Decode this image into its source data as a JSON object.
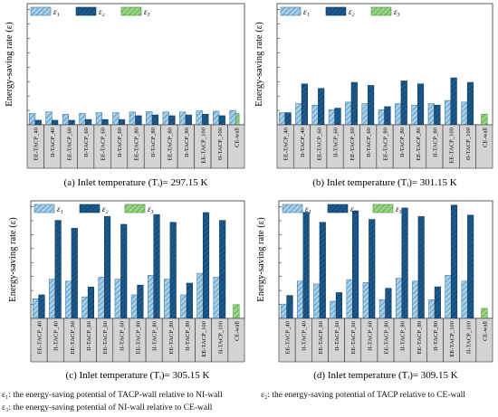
{
  "panel_labels": [
    "(a) Inlet temperature (Tᵢ)= 297.15 K",
    "(b) Inlet temperature (Tᵢ)= 301.15 K",
    "(c) Inlet temperature (Tᵢ)= 305.15 K",
    "(d) Inlet temperature (Tᵢ)= 309.15 K"
  ],
  "footnotes": {
    "e1": "ε₁: the energy-saving potential of TACP-wall relative to NI-wall",
    "e2": "ε₂: the energy-saving potential of TACP relative to CE-wall",
    "e3": "ε₃: the energy-saving potential of NI-wall relative to CE-wall"
  },
  "colors": {
    "e1_fill": "#a9cfe6",
    "e1_hatch": "#3b7fb3",
    "e2_fill": "#1d5a8c",
    "e2_hatch": "#0d3a62",
    "e3_fill": "#9ed48a",
    "e3_hatch": "#3d9a2f",
    "label_box": "#d4d4d4"
  },
  "chart_data": [
    {
      "type": "bar",
      "title": "(a) Inlet temperature (Tᵢ)= 297.15 K",
      "ylabel": "Energy-saving rate (ε)",
      "ylim": [
        0,
        8
      ],
      "legend": [
        "ε₁",
        "ε₂",
        "ε₃"
      ],
      "legend_placement": "top-left",
      "categories": [
        "EE-TACP_40",
        "II-TACP_40",
        "EE-TACP_60",
        "II-TACP_60",
        "EE-TACP_60",
        "II-TACP_60",
        "EE-TACP_80",
        "II-TACP_80",
        "EE-TACP_80",
        "II-TACP_80",
        "EE-TACP_100",
        "II-TACP_100",
        "CE-wall"
      ],
      "e1": [
        0.75,
        0.85,
        0.7,
        0.75,
        0.8,
        0.8,
        0.85,
        0.88,
        0.85,
        0.85,
        0.92,
        0.9,
        0.95
      ],
      "e2": [
        0.3,
        0.3,
        0.3,
        0.35,
        0.35,
        0.35,
        0.6,
        0.65,
        0.6,
        0.65,
        0.7,
        0.6,
        null
      ],
      "e3": [
        null,
        null,
        null,
        null,
        null,
        null,
        null,
        null,
        null,
        null,
        null,
        null,
        0.75
      ]
    },
    {
      "type": "bar",
      "title": "(b) Inlet temperature (Tᵢ)= 301.15 K",
      "ylabel": "Energy-saving rate (ε)",
      "ylim": [
        0,
        8
      ],
      "legend": [
        "ε₁",
        "ε₂",
        "ε₃"
      ],
      "legend_placement": "top-left",
      "categories": [
        "EE-TACP_40",
        "II-TACP_40",
        "EE-TACP_60",
        "II-TACP_60",
        "EE-TACP_60",
        "II-TACP_60",
        "EE-TACP_80",
        "II-TACP_80",
        "EE-TACP_80",
        "II-TACP_80",
        "EE-TACP_100",
        "II-TACP_100",
        "CE-wall"
      ],
      "e1": [
        0.8,
        1.4,
        1.3,
        1.0,
        1.5,
        1.4,
        1.0,
        1.4,
        1.3,
        1.4,
        1.6,
        1.5,
        null
      ],
      "e2": [
        0.8,
        2.7,
        2.4,
        1.1,
        2.8,
        2.6,
        1.2,
        2.9,
        2.7,
        1.3,
        3.1,
        2.8,
        null
      ],
      "e3": [
        null,
        null,
        null,
        null,
        null,
        null,
        null,
        null,
        null,
        null,
        null,
        null,
        0.7
      ]
    },
    {
      "type": "bar",
      "title": "(c) Inlet temperature (Tᵢ)= 305.15 K",
      "ylabel": "Energy-saving rate (ε)",
      "ylim": [
        0,
        6
      ],
      "legend": [
        "ε₁",
        "ε₂",
        "ε₃"
      ],
      "legend_placement": "top-left",
      "categories": [
        "EE-TACP_40",
        "II-TACP_40",
        "EE-TACP_60",
        "II-TACP_60",
        "EE-TACP_60",
        "II-TACP_60",
        "EE-TACP_80",
        "II-TACP_80",
        "EE-TACP_80",
        "II-TACP_80",
        "EE-TACP_100",
        "II-TACP_100",
        "CE-wall"
      ],
      "e1": [
        1.0,
        2.0,
        1.9,
        1.1,
        2.1,
        2.0,
        1.2,
        2.2,
        2.0,
        1.2,
        2.3,
        2.1,
        null
      ],
      "e2": [
        1.2,
        5.0,
        4.6,
        1.6,
        5.2,
        4.8,
        1.7,
        5.3,
        4.9,
        1.8,
        5.4,
        5.0,
        null
      ],
      "e3": [
        null,
        null,
        null,
        null,
        null,
        null,
        null,
        null,
        null,
        null,
        null,
        null,
        0.7
      ]
    },
    {
      "type": "bar",
      "title": "(d) Inlet temperature (Tᵢ)= 309.15 K",
      "ylabel": "Energy-saving rate (ε)",
      "ylim": [
        0,
        8.2
      ],
      "legend": [
        "ε₁",
        "ε₂",
        "ε₃"
      ],
      "legend_placement": "top-left",
      "categories": [
        "EE-TACP_40",
        "II-TACP_40",
        "EE-TACP_60",
        "II-TACP_60",
        "EE-TACP_60",
        "II-TACP_60",
        "EE-TACP_80",
        "II-TACP_80",
        "EE-TACP_80",
        "II-TACP_80",
        "EE-TACP_100",
        "II-TACP_100",
        "CE-wall"
      ],
      "e1": [
        1.0,
        2.6,
        2.4,
        1.2,
        2.7,
        2.5,
        1.3,
        2.8,
        2.6,
        1.3,
        3.0,
        2.6,
        null
      ],
      "e2": [
        1.6,
        7.4,
        6.7,
        1.8,
        7.5,
        6.9,
        2.1,
        7.7,
        7.1,
        2.2,
        7.9,
        7.2,
        null
      ],
      "e3": [
        null,
        null,
        null,
        null,
        null,
        null,
        null,
        null,
        null,
        null,
        null,
        null,
        0.7
      ]
    }
  ]
}
